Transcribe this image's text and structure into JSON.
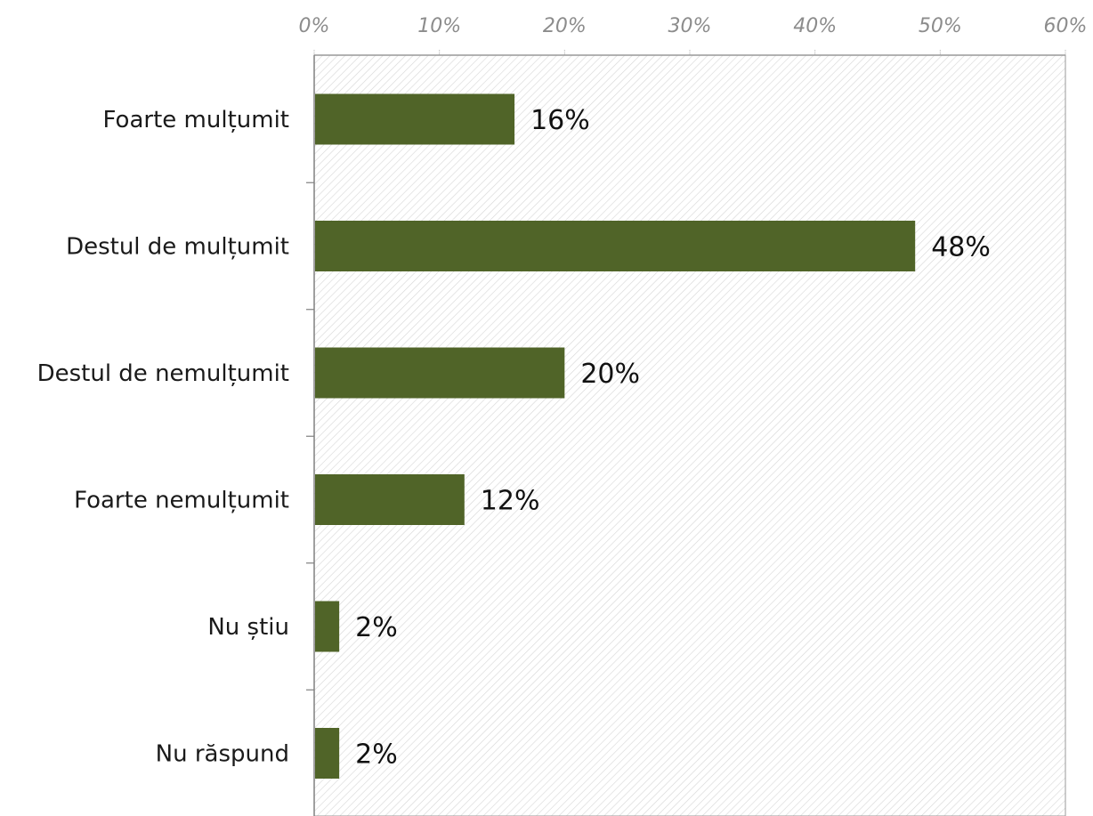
{
  "chart_data": {
    "type": "bar",
    "orientation": "horizontal",
    "categories": [
      "Foarte mulțumit",
      "Destul de mulțumit",
      "Destul de nemulțumit",
      "Foarte nemulțumit",
      "Nu știu",
      "Nu răspund"
    ],
    "values": [
      16,
      48,
      20,
      12,
      2,
      2
    ],
    "value_labels": [
      "16%",
      "48%",
      "20%",
      "12%",
      "2%",
      "2%"
    ],
    "x_ticks": [
      "0%",
      "10%",
      "20%",
      "30%",
      "40%",
      "50%",
      "60%"
    ],
    "xlim": [
      0,
      60
    ],
    "x_axis_position": "top",
    "grid": false,
    "legend": "none",
    "title": "",
    "xlabel": "",
    "ylabel": "",
    "colors": {
      "bar": "#506428",
      "plot_hatch": "#d6d6d6",
      "axis": "#999999",
      "tick_text": "#8c8c8c",
      "label_text": "#1a1a1a"
    }
  }
}
